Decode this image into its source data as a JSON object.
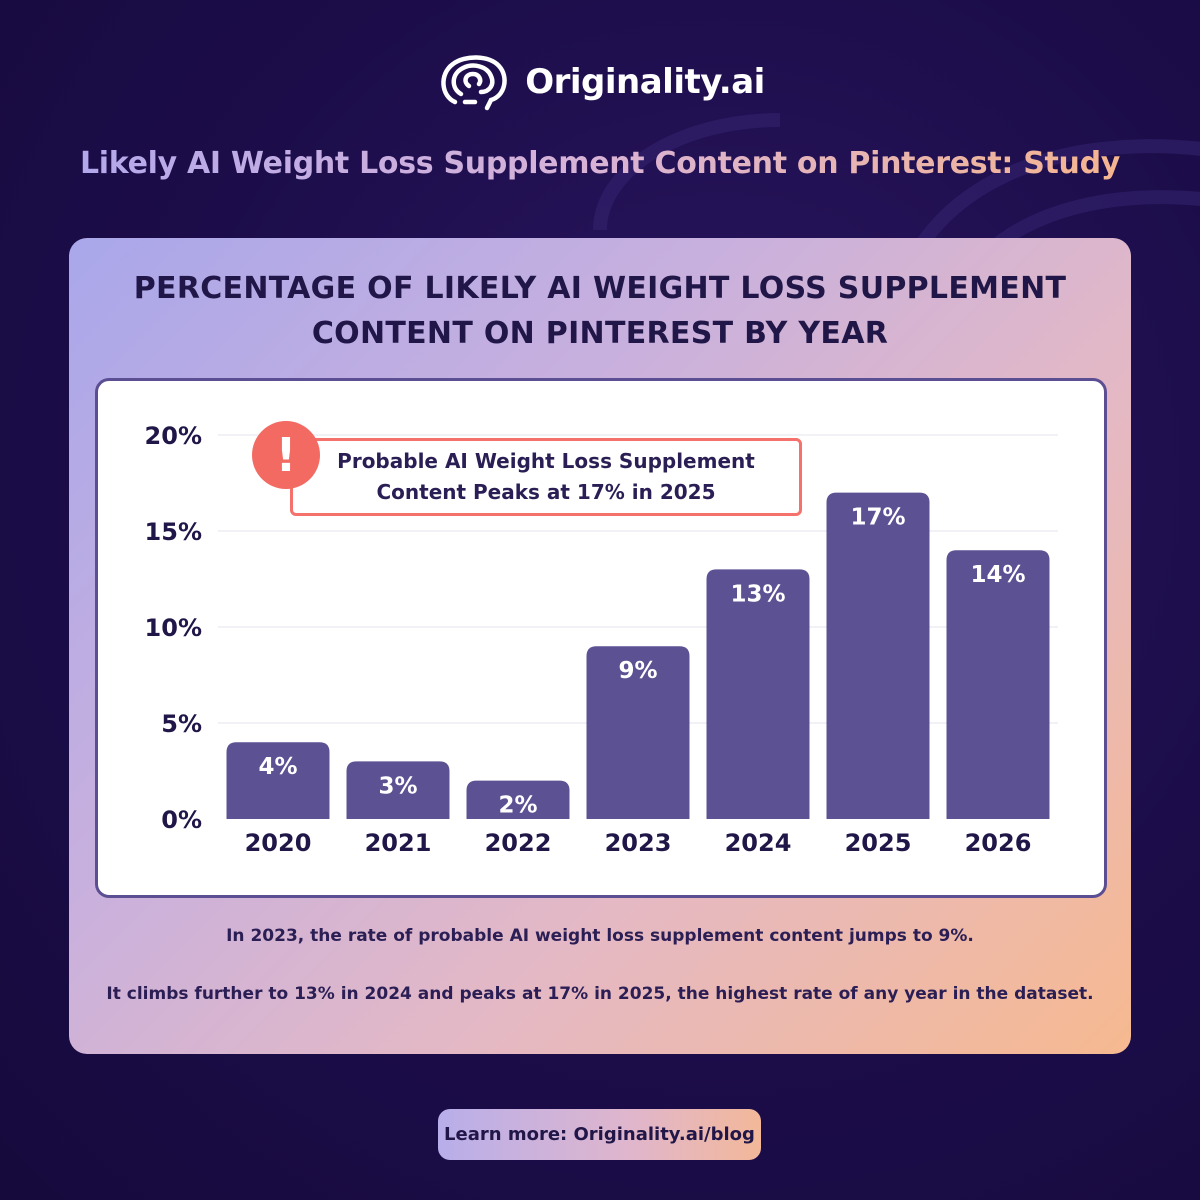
{
  "brand": {
    "name": "Originality.ai",
    "logo_icon": "brain-icon"
  },
  "headline": "Likely AI Weight Loss Supplement Content on Pinterest: Study",
  "chart_title_line1": "PERCENTAGE OF LIKELY AI WEIGHT LOSS SUPPLEMENT",
  "chart_title_line2": "CONTENT ON PINTEREST BY YEAR",
  "callout": {
    "icon": "exclamation-icon",
    "line1": "Probable AI Weight Loss Supplement",
    "line2": "Content Peaks at 17% in 2025"
  },
  "chart_data": {
    "type": "bar",
    "categories": [
      "2020",
      "2021",
      "2022",
      "2023",
      "2024",
      "2025",
      "2026"
    ],
    "values": [
      4,
      3,
      2,
      9,
      13,
      17,
      14
    ],
    "data_labels": [
      "4%",
      "3%",
      "2%",
      "9%",
      "13%",
      "17%",
      "14%"
    ],
    "title": "PERCENTAGE OF LIKELY AI WEIGHT LOSS SUPPLEMENT CONTENT ON PINTEREST BY YEAR",
    "xlabel": "",
    "ylabel": "",
    "ylim": [
      0,
      20
    ],
    "yticks": [
      0,
      5,
      10,
      15,
      20
    ],
    "ytick_labels": [
      "0%",
      "5%",
      "10%",
      "15%",
      "20%"
    ],
    "grid": true,
    "legend": "none"
  },
  "notes": [
    "In 2023, the rate of probable AI weight loss supplement content jumps to 9%.",
    "It climbs further to 13% in 2024 and peaks at 17% in 2025, the highest rate of any year in the dataset."
  ],
  "cta": "Learn more: Originality.ai/blog",
  "colors": {
    "background": "#1c0d4a",
    "bar": "#5c5193",
    "text_dark": "#211648",
    "callout_accent": "#f26a62"
  }
}
